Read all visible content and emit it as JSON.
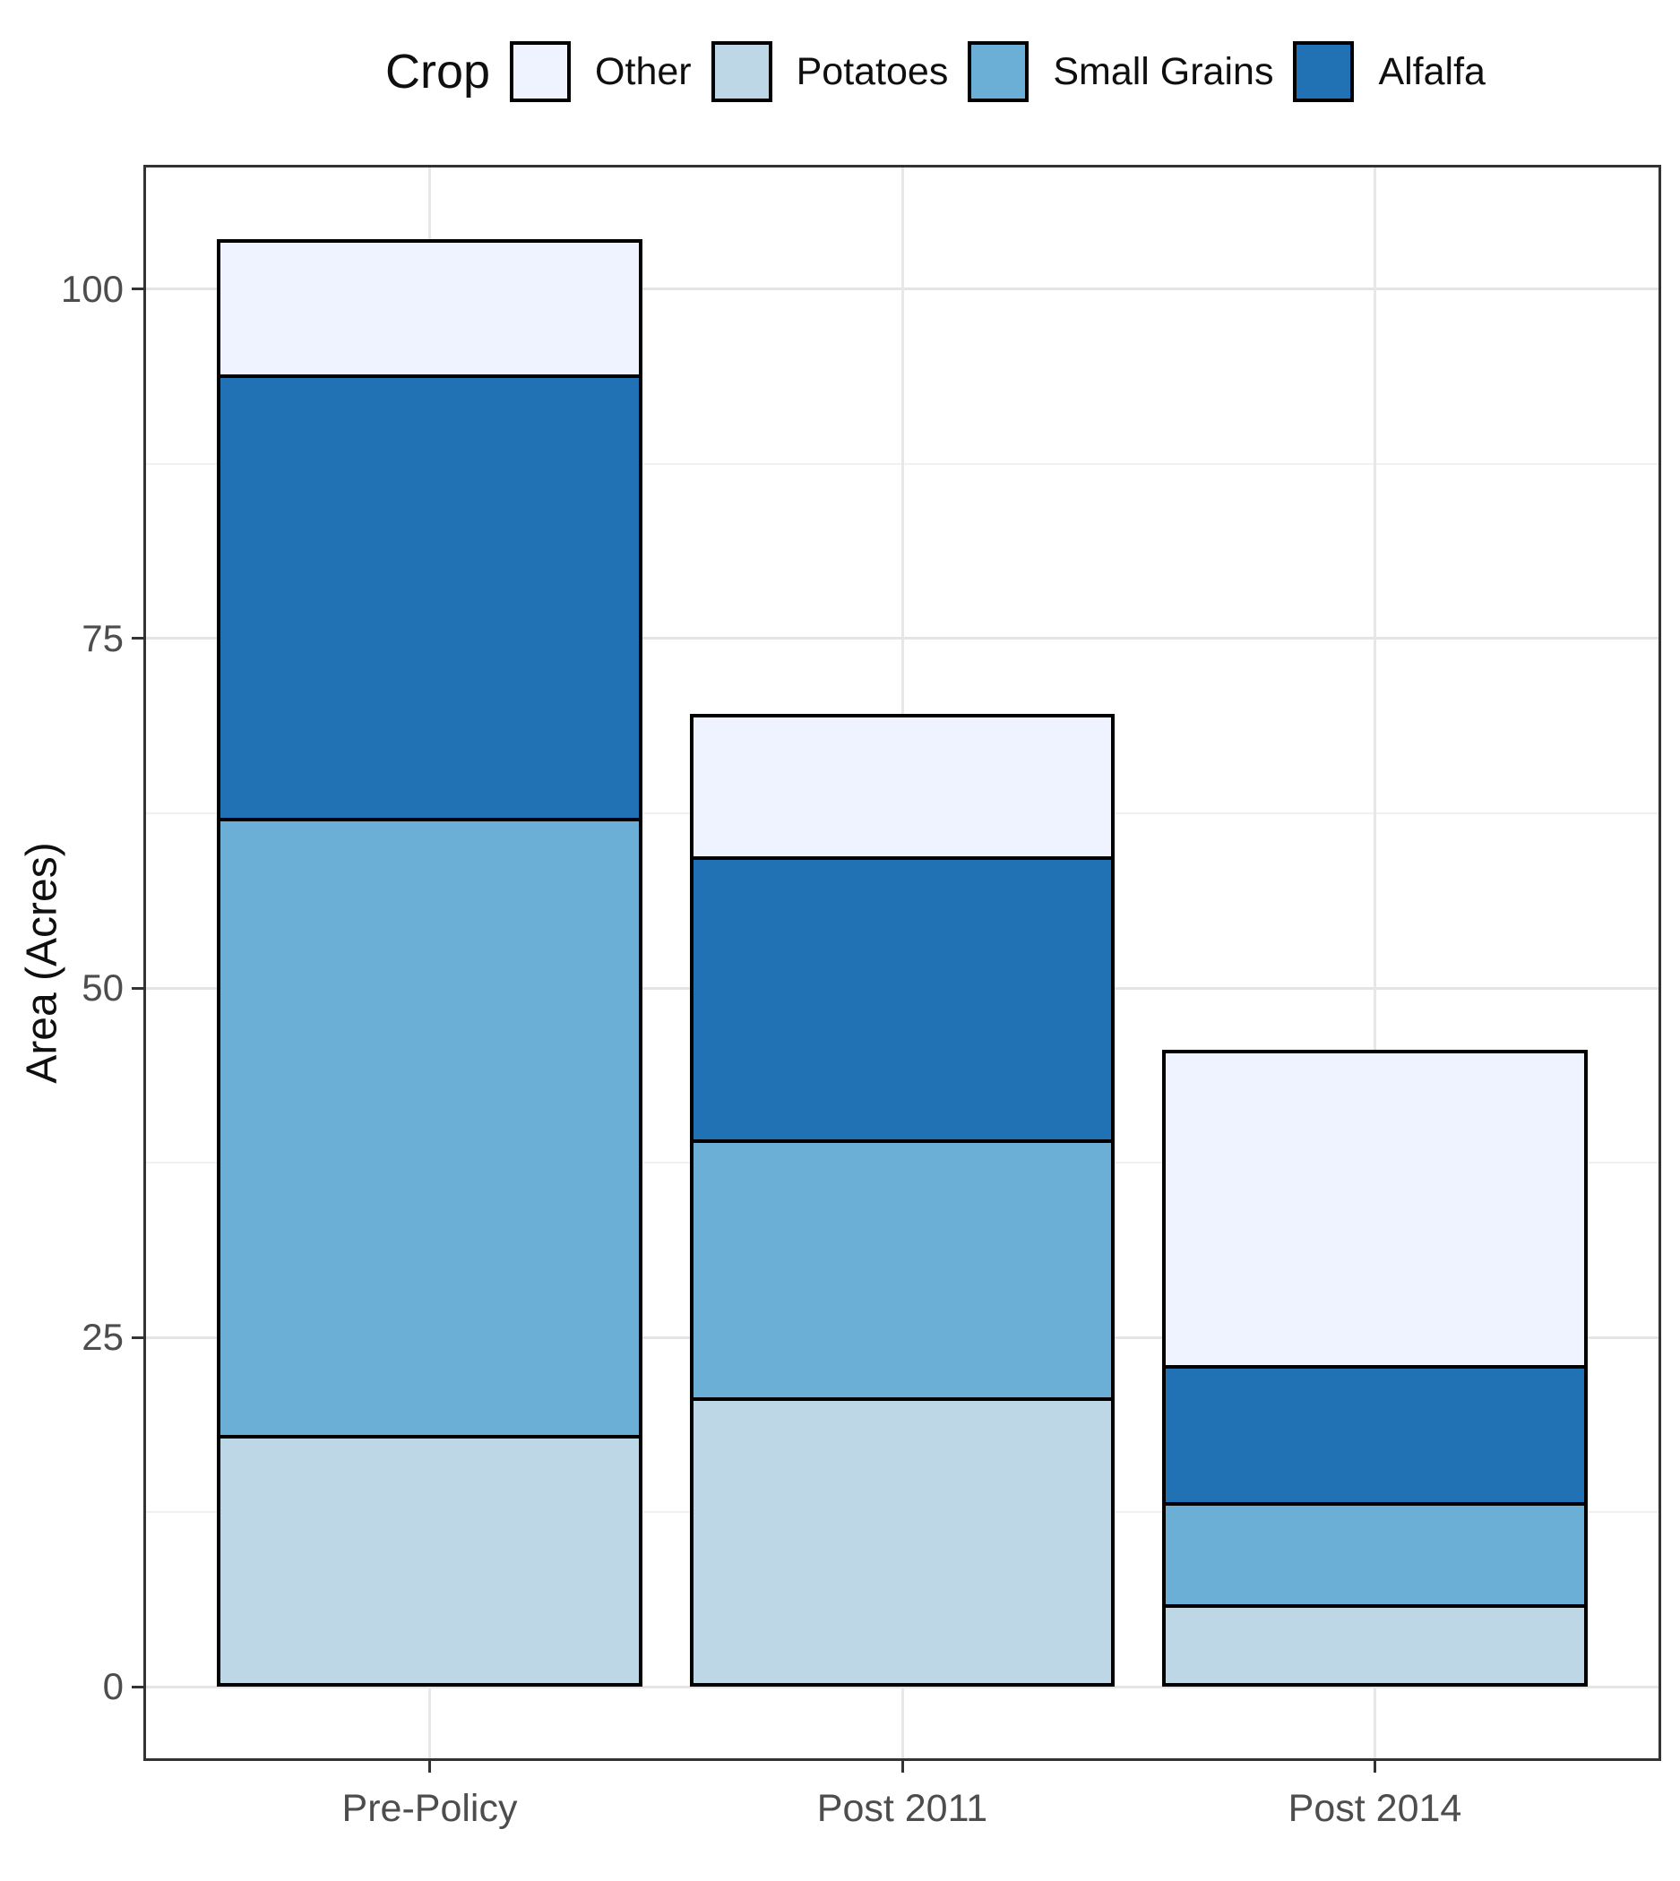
{
  "legend": {
    "title": "Crop",
    "items": [
      {
        "label": "Other",
        "color": "#EFF3FF"
      },
      {
        "label": "Potatoes",
        "color": "#BDD7E7"
      },
      {
        "label": "Small Grains",
        "color": "#6BAED6"
      },
      {
        "label": "Alfalfa",
        "color": "#2171B5"
      }
    ]
  },
  "chart_data": {
    "type": "bar",
    "stacked": true,
    "title": "",
    "xlabel": "",
    "ylabel": "Area (Acres)",
    "categories": [
      "Pre-Policy",
      "Post 2011",
      "Post 2014"
    ],
    "series": [
      {
        "name": "Potatoes",
        "color": "#BDD7E7",
        "values": [
          18.0,
          20.7,
          5.9
        ]
      },
      {
        "name": "Small Grains",
        "color": "#6BAED6",
        "values": [
          44.2,
          18.5,
          7.3
        ]
      },
      {
        "name": "Alfalfa",
        "color": "#2171B5",
        "values": [
          31.7,
          20.2,
          9.8
        ]
      },
      {
        "name": "Other",
        "color": "#EFF3FF",
        "values": [
          9.7,
          10.2,
          22.6
        ]
      }
    ],
    "stack_order_bottom_to_top": [
      "Potatoes",
      "Small Grains",
      "Alfalfa",
      "Other"
    ],
    "totals": [
      103.6,
      69.6,
      45.6
    ],
    "y_ticks": [
      0,
      25,
      50,
      75,
      100
    ],
    "y_range": [
      -5.1,
      108.7
    ],
    "bar_width_fraction": 0.9,
    "grid": "horizontal major+minor, vertical major at category centers",
    "legend_position": "top",
    "colors": {
      "bar_outline": "#000000",
      "panel_border": "#333333",
      "grid_major": "#e4e4e4",
      "grid_minor": "#f1f1f1",
      "tick_text": "#4d4d4d"
    }
  }
}
